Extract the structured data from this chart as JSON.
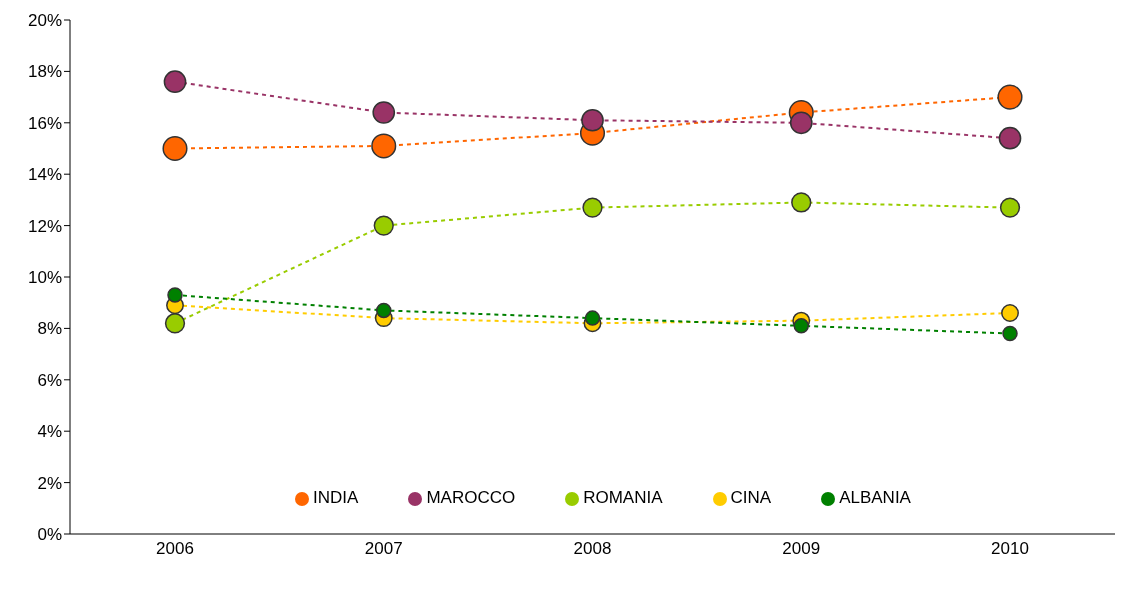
{
  "chart_data": {
    "type": "line",
    "categories": [
      "2006",
      "2007",
      "2008",
      "2009",
      "2010"
    ],
    "series": [
      {
        "name": "INDIA",
        "color": "#ff6600",
        "values": [
          15.0,
          15.1,
          15.6,
          16.4,
          17.0
        ]
      },
      {
        "name": "MAROCCO",
        "color": "#993366",
        "values": [
          17.6,
          16.4,
          16.1,
          16.0,
          15.4
        ]
      },
      {
        "name": "ROMANIA",
        "color": "#99cc00",
        "values": [
          8.2,
          12.0,
          12.7,
          12.9,
          12.7
        ]
      },
      {
        "name": "CINA",
        "color": "#ffcc00",
        "values": [
          8.9,
          8.4,
          8.2,
          8.3,
          8.6
        ]
      },
      {
        "name": "ALBANIA",
        "color": "#008000",
        "values": [
          9.3,
          8.7,
          8.4,
          8.1,
          7.8
        ]
      }
    ],
    "ylim": [
      0,
      20
    ],
    "yticks": [
      {
        "value": 0,
        "label": "0%"
      },
      {
        "value": 2,
        "label": "2%"
      },
      {
        "value": 4,
        "label": "4%"
      },
      {
        "value": 6,
        "label": "6%"
      },
      {
        "value": 8,
        "label": "8%"
      },
      {
        "value": 10,
        "label": "10%"
      },
      {
        "value": 12,
        "label": "12%"
      },
      {
        "value": 14,
        "label": "14%"
      },
      {
        "value": 16,
        "label": "16%"
      },
      {
        "value": 18,
        "label": "18%"
      },
      {
        "value": 20,
        "label": "20%"
      }
    ],
    "grid": false,
    "legend": "bottom",
    "marker": "circle",
    "line_style": "dashed"
  }
}
